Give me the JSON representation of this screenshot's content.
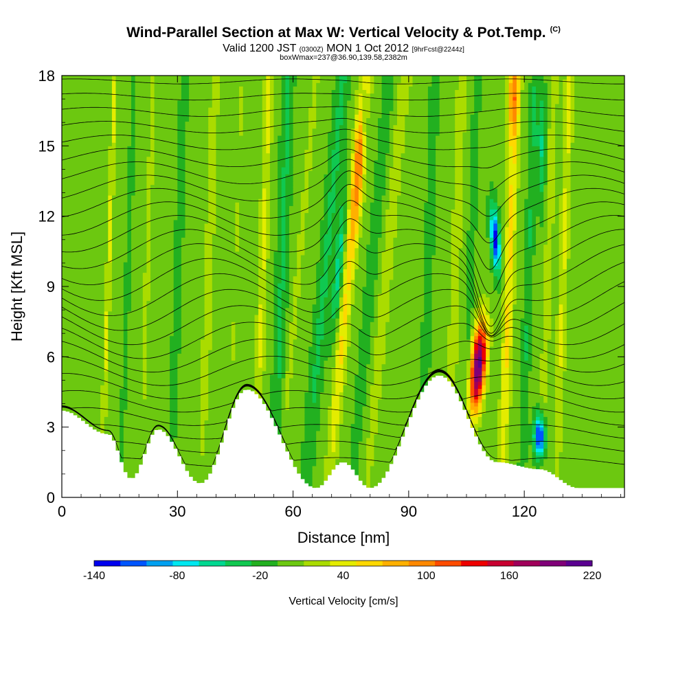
{
  "header": {
    "title": "Wind-Parallel Section at Max W: Vertical Velocity & Pot.Temp.",
    "title_mark": "(C)",
    "subtitle_a": "Valid 1200 JST",
    "subtitle_b": "(0300Z)",
    "subtitle_c": "MON 1 Oct 2012",
    "subtitle_d": "[9hrFcst@2244z]",
    "subtitle2": "boxWmax=237@36.90,139.58,2382m"
  },
  "chart_data": {
    "type": "heatmap",
    "xlabel": "Distance [nm]",
    "ylabel": "Height [Kft MSL]",
    "xlim": [
      0,
      146
    ],
    "ylim": [
      0,
      18
    ],
    "x_ticks": [
      0,
      30,
      60,
      90,
      120
    ],
    "x_tick_labels": [
      "0",
      "30",
      "60",
      "90",
      "120"
    ],
    "y_ticks": [
      0,
      3,
      6,
      9,
      12,
      15,
      18
    ],
    "y_tick_labels": [
      "0",
      "3",
      "6",
      "9",
      "12",
      "15",
      "18"
    ],
    "colorbar": {
      "title": "Vertical Velocity [cm/s]",
      "tick_labels": [
        "-140",
        "-80",
        "-20",
        "40",
        "100",
        "160",
        "220"
      ],
      "colors": [
        "#0000ee",
        "#0055ff",
        "#00a0f0",
        "#00e8f0",
        "#00d890",
        "#10c850",
        "#22b020",
        "#6cc810",
        "#aadc00",
        "#e4ec00",
        "#ffd800",
        "#ffb000",
        "#ff8800",
        "#ff4c00",
        "#ee0000",
        "#c80030",
        "#a0005a",
        "#800078",
        "#5a0090"
      ]
    },
    "features": {
      "updraft_max": 237,
      "updraft_max_location": "36.90,139.58",
      "updraft_max_height_m": 2382,
      "strong_updraft": {
        "x": 108,
        "y_range": [
          3.5,
          8
        ]
      },
      "strong_downdraft": {
        "x": 124,
        "y_range": [
          2,
          3.5
        ]
      },
      "upper_downdraft": {
        "x": 112,
        "y_range": [
          9.5,
          12.5
        ]
      },
      "terrain_peaks_kft": [
        {
          "x": 0,
          "h": 3.7
        },
        {
          "x": 12,
          "h": 2.7
        },
        {
          "x": 18,
          "h": 0.8
        },
        {
          "x": 25,
          "h": 2.9
        },
        {
          "x": 36,
          "h": 0.6
        },
        {
          "x": 48,
          "h": 4.6
        },
        {
          "x": 66,
          "h": 0.4
        },
        {
          "x": 73,
          "h": 1.5
        },
        {
          "x": 80,
          "h": 0.4
        },
        {
          "x": 98,
          "h": 5.2
        },
        {
          "x": 113,
          "h": 1.5
        },
        {
          "x": 124,
          "h": 1.2
        },
        {
          "x": 134,
          "h": 0.4
        },
        {
          "x": 146,
          "h": 0.4
        }
      ]
    }
  }
}
